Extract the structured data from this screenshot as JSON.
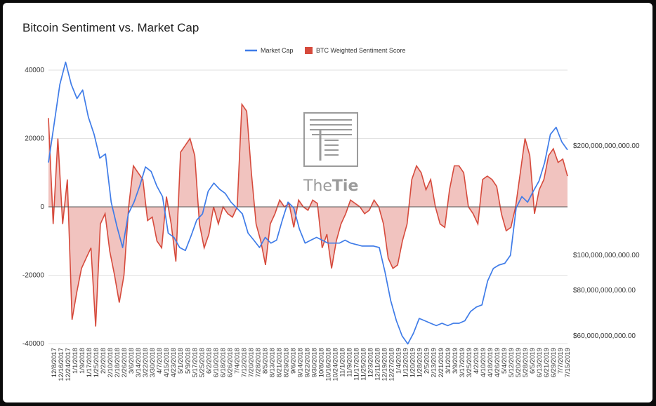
{
  "chart_data": {
    "type": "line",
    "title": "Bitcoin Sentiment vs. Market Cap",
    "legend": {
      "position": "top",
      "entries": [
        {
          "name": "Market Cap",
          "color": "#3f7ce8",
          "style": "line"
        },
        {
          "name": "BTC Weighted Sentiment Score",
          "color": "#d64a3c",
          "style": "area"
        }
      ]
    },
    "grid": true,
    "y_left": {
      "min": -40000,
      "max": 40000,
      "ticks": [
        40000,
        20000,
        0,
        -20000,
        -40000
      ],
      "tick_labels": [
        "40000",
        "20000",
        "0",
        "-20000",
        "-40000"
      ]
    },
    "y_right": {
      "scale": "log",
      "min": 55000000000,
      "max": 350000000000,
      "ticks": [
        200000000000,
        100000000000,
        80000000000,
        60000000000
      ],
      "tick_labels": [
        "$200,000,000,000.00",
        "$100,000,000,000.00",
        "$80,000,000,000.00",
        "$60,000,000,000.00"
      ]
    },
    "x_labels": [
      "12/8/2017",
      "12/16/2017",
      "12/24/2017",
      "1/1/2018",
      "1/9/2018",
      "1/17/2018",
      "1/25/2018",
      "2/2/2018",
      "2/10/2018",
      "2/18/2018",
      "2/26/2018",
      "3/6/2018",
      "3/14/2018",
      "3/22/2018",
      "3/30/2018",
      "4/7/2018",
      "4/15/2018",
      "4/23/2018",
      "5/1/2018",
      "5/9/2018",
      "5/17/2018",
      "5/25/2018",
      "6/2/2018",
      "6/10/2018",
      "6/18/2018",
      "6/26/2018",
      "7/4/2018",
      "7/12/2018",
      "7/20/2018",
      "7/28/2018",
      "8/5/2018",
      "8/13/2018",
      "8/21/2018",
      "8/29/2018",
      "9/6/2018",
      "9/14/2018",
      "9/22/2018",
      "9/30/2018",
      "10/8/2018",
      "10/16/2018",
      "10/24/2018",
      "11/1/2018",
      "11/9/2018",
      "11/17/2018",
      "11/25/2018",
      "12/3/2018",
      "12/11/2018",
      "12/19/2018",
      "12/27/2018",
      "1/4/2019",
      "1/12/2019",
      "1/20/2019",
      "1/28/2019",
      "2/5/2019",
      "2/13/2019",
      "2/21/2019",
      "3/1/2019",
      "3/9/2019",
      "3/17/2019",
      "3/25/2019",
      "4/2/2019",
      "4/10/2019",
      "4/18/2019",
      "4/26/2019",
      "5/4/2019",
      "5/12/2019",
      "5/20/2019",
      "5/28/2019",
      "6/5/2019",
      "6/13/2019",
      "6/21/2019",
      "6/29/2019",
      "7/7/2019",
      "7/15/2019"
    ],
    "series": [
      {
        "name": "BTC Weighted Sentiment Score",
        "type": "area",
        "color": "#d64a3c",
        "values": [
          26000,
          -5000,
          20000,
          -5000,
          8000,
          -33000,
          -25000,
          -18000,
          -15000,
          -12000,
          -35000,
          -5000,
          -2000,
          -13000,
          -20000,
          -28000,
          -20000,
          0,
          12000,
          10000,
          8000,
          -4000,
          -3000,
          -10000,
          -12000,
          3000,
          -5000,
          -16000,
          16000,
          18000,
          20000,
          15000,
          -5000,
          -12000,
          -8000,
          0,
          -5000,
          0,
          -2000,
          -3000,
          0,
          30000,
          28000,
          10000,
          -5000,
          -10000,
          -17000,
          -5000,
          -2000,
          2000,
          0,
          1000,
          -6000,
          2000,
          0,
          -1000,
          2000,
          1000,
          -12000,
          -8000,
          -18000,
          -10000,
          -5000,
          -2000,
          2000,
          1000,
          0,
          -2000,
          -1000,
          2000,
          0,
          -5000,
          -15000,
          -18000,
          -17000,
          -10000,
          -5000,
          8000,
          12000,
          10000,
          5000,
          8000,
          0,
          -5000,
          -6000,
          5000,
          12000,
          12000,
          10000,
          0,
          -2000,
          -5000,
          8000,
          9000,
          8000,
          6000,
          -2000,
          -7000,
          -6000,
          0,
          10000,
          20000,
          15000,
          -2000,
          5000,
          8000,
          15000,
          17000,
          13000,
          14000,
          9000
        ]
      },
      {
        "name": "Market Cap",
        "type": "line",
        "color": "#3f7ce8",
        "axis": "right",
        "values": [
          180000000000,
          230000000000,
          295000000000,
          340000000000,
          295000000000,
          270000000000,
          285000000000,
          240000000000,
          215000000000,
          185000000000,
          190000000000,
          140000000000,
          120000000000,
          105000000000,
          130000000000,
          140000000000,
          155000000000,
          175000000000,
          170000000000,
          155000000000,
          145000000000,
          115000000000,
          112000000000,
          105000000000,
          103000000000,
          113000000000,
          125000000000,
          130000000000,
          150000000000,
          158000000000,
          152000000000,
          148000000000,
          140000000000,
          135000000000,
          130000000000,
          115000000000,
          110000000000,
          105000000000,
          112000000000,
          108000000000,
          110000000000,
          125000000000,
          140000000000,
          135000000000,
          118000000000,
          108000000000,
          110000000000,
          112000000000,
          110000000000,
          108000000000,
          108000000000,
          108000000000,
          110000000000,
          108000000000,
          107000000000,
          106000000000,
          106000000000,
          106000000000,
          105000000000,
          90000000000,
          75000000000,
          66000000000,
          60000000000,
          57000000000,
          61000000000,
          67000000000,
          66000000000,
          65000000000,
          64000000000,
          65000000000,
          64000000000,
          65000000000,
          65000000000,
          66000000000,
          70000000000,
          72000000000,
          73000000000,
          85000000000,
          92000000000,
          94000000000,
          95000000000,
          100000000000,
          135000000000,
          145000000000,
          140000000000,
          150000000000,
          160000000000,
          180000000000,
          215000000000,
          225000000000,
          205000000000,
          195000000000
        ]
      }
    ]
  },
  "watermark": {
    "text_plain": "The",
    "text_bold": "Tie"
  }
}
